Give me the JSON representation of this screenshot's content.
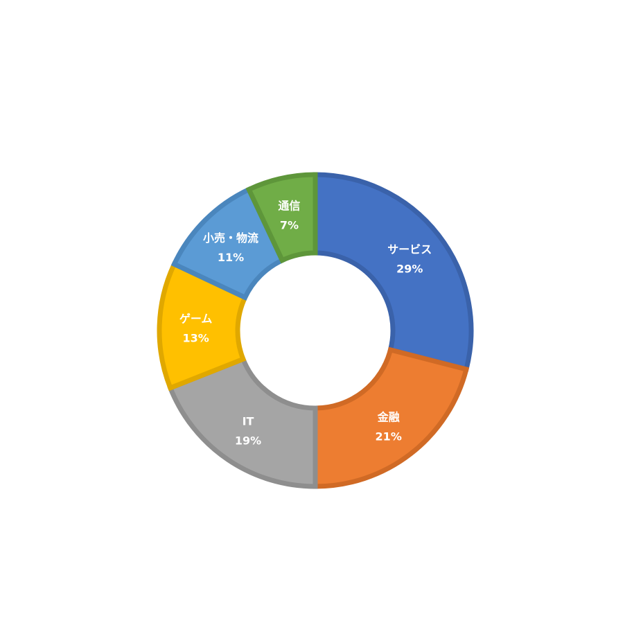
{
  "chart_data": {
    "type": "pie",
    "donut": true,
    "title": "",
    "slices": [
      {
        "label": "サービス",
        "value": 29,
        "value_label": "29%",
        "color": "#4472C4",
        "stroke": "#3A62AA"
      },
      {
        "label": "金融",
        "value": 21,
        "value_label": "21%",
        "color": "#ED7D31",
        "stroke": "#D06A25"
      },
      {
        "label": "IT",
        "value": 19,
        "value_label": "19%",
        "color": "#A5A5A5",
        "stroke": "#8E8E8E"
      },
      {
        "label": "ゲーム",
        "value": 13,
        "value_label": "13%",
        "color": "#FFC000",
        "stroke": "#E0A800"
      },
      {
        "label": "小売・物流",
        "value": 11,
        "value_label": "11%",
        "color": "#5B9BD5",
        "stroke": "#4A86BD"
      },
      {
        "label": "通信",
        "value": 7,
        "value_label": "7%",
        "color": "#70AD47",
        "stroke": "#5E963A"
      }
    ]
  }
}
